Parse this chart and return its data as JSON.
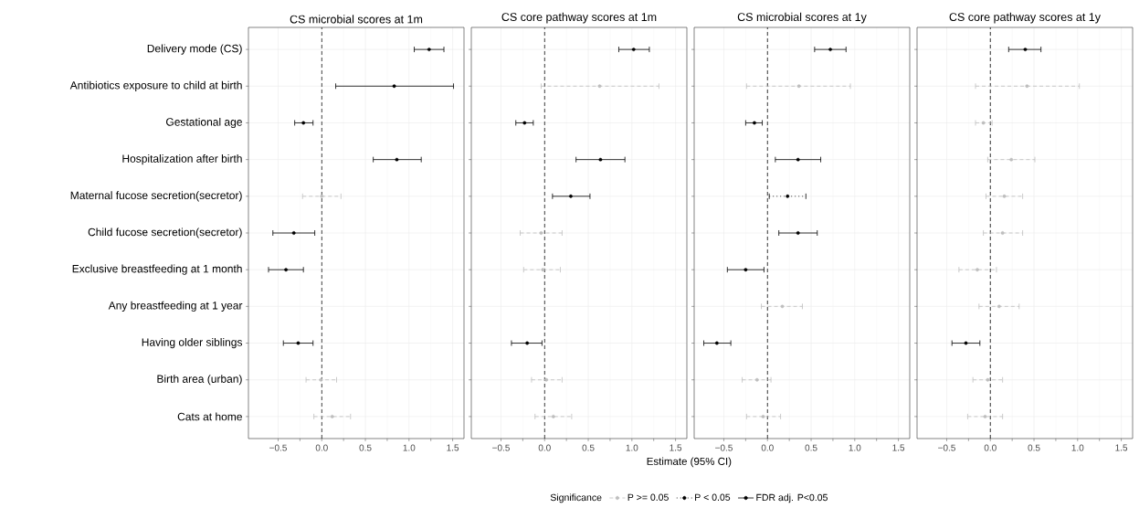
{
  "chart_data": [
    {
      "type": "scatter",
      "title": "CS microbial scores at 1m",
      "orientation": "horizontal",
      "grid": true,
      "marker": "circle",
      "categories": [
        "Delivery mode (CS)",
        "Antibiotics exposure to child at birth",
        "Gestational age",
        "Hospitalization after birth",
        "Maternal fucose secretion(secretor)",
        "Child fucose secretion(secretor)",
        "Exclusive breastfeeding at 1 month",
        "Any breastfeeding at 1 year",
        "Having older siblings",
        "Birth area (urban)",
        "Cats at home"
      ],
      "xlim": [
        -0.84,
        1.63
      ],
      "xticks": [
        {
          "value": -0.5,
          "label": "−0.5"
        },
        {
          "value": 0,
          "label": "0.0"
        },
        {
          "value": 0.5,
          "label": "0.5"
        },
        {
          "value": 1,
          "label": "1.0"
        },
        {
          "value": 1.5,
          "label": "1.5"
        }
      ],
      "ref_lines": [
        {
          "axis": "x",
          "value": 0,
          "line_style": "dashed",
          "color": "#000000"
        }
      ],
      "series": [
        {
          "color": "#bebebe",
          "line_style": "dashed",
          "values": [
            null,
            null,
            null,
            null,
            0.0,
            null,
            null,
            null,
            null,
            -0.01,
            0.12
          ],
          "errors": [
            null,
            null,
            null,
            null,
            [
              -0.22,
              0.22
            ],
            null,
            null,
            null,
            null,
            [
              -0.18,
              0.17
            ],
            [
              -0.09,
              0.33
            ]
          ]
        },
        {
          "color": "#000000",
          "line_style": "dotted",
          "values": [
            null,
            null,
            null,
            null,
            null,
            null,
            null,
            null,
            null,
            null,
            null
          ],
          "errors": [
            null,
            null,
            null,
            null,
            null,
            null,
            null,
            null,
            null,
            null,
            null
          ]
        },
        {
          "color": "#000000",
          "line_style": "solid",
          "values": [
            1.23,
            0.83,
            -0.21,
            0.86,
            null,
            -0.32,
            -0.41,
            null,
            -0.27,
            null,
            null
          ],
          "errors": [
            [
              1.06,
              1.4
            ],
            [
              0.16,
              1.51
            ],
            [
              -0.31,
              -0.1
            ],
            [
              0.59,
              1.14
            ],
            null,
            [
              -0.56,
              -0.08
            ],
            [
              -0.61,
              -0.21
            ],
            null,
            [
              -0.44,
              -0.1
            ],
            null,
            null
          ]
        }
      ]
    },
    {
      "type": "scatter",
      "title": "CS core pathway scores at 1m",
      "orientation": "horizontal",
      "grid": true,
      "marker": "circle",
      "tick_labels": "x",
      "xlabel": "Estimate (95% CI)",
      "legend": "bottom",
      "legend_title": "Significance",
      "categories": [
        null,
        null,
        null,
        null,
        null,
        null,
        null,
        null,
        null,
        null,
        null
      ],
      "xlim": [
        -0.84,
        1.63
      ],
      "xticks": [
        {
          "value": -0.5,
          "label": "−0.5"
        },
        {
          "value": 0,
          "label": "0.0"
        },
        {
          "value": 0.5,
          "label": "0.5"
        },
        {
          "value": 1,
          "label": "1.0"
        },
        {
          "value": 1.5,
          "label": "1.5"
        }
      ],
      "ref_lines": [
        {
          "axis": "x",
          "value": 0,
          "line_style": "dashed",
          "color": "#000000"
        }
      ],
      "series": [
        {
          "name": "P >= 0.05",
          "color": "#bebebe",
          "line_style": "dashed",
          "values": [
            null,
            0.63,
            null,
            null,
            null,
            -0.04,
            -0.02,
            null,
            null,
            0.02,
            0.1
          ],
          "errors": [
            null,
            [
              -0.04,
              1.31
            ],
            null,
            null,
            null,
            [
              -0.28,
              0.2
            ],
            [
              -0.24,
              0.18
            ],
            null,
            null,
            [
              -0.15,
              0.2
            ],
            [
              -0.11,
              0.31
            ]
          ]
        },
        {
          "name": "P < 0.05",
          "color": "#000000",
          "line_style": "dotted",
          "values": [
            null,
            null,
            null,
            null,
            null,
            null,
            null,
            null,
            null,
            null,
            null
          ],
          "errors": [
            null,
            null,
            null,
            null,
            null,
            null,
            null,
            null,
            null,
            null,
            null
          ]
        },
        {
          "name": "FDR adj. P<0.05",
          "color": "#000000",
          "line_style": "solid",
          "values": [
            1.02,
            null,
            -0.23,
            0.64,
            0.3,
            null,
            null,
            null,
            -0.2,
            null,
            null
          ],
          "errors": [
            [
              0.85,
              1.2
            ],
            null,
            [
              -0.33,
              -0.13
            ],
            [
              0.36,
              0.92
            ],
            [
              0.09,
              0.52
            ],
            null,
            null,
            null,
            [
              -0.38,
              -0.03
            ],
            null,
            null
          ]
        }
      ]
    },
    {
      "type": "scatter",
      "title": "CS microbial scores at 1y",
      "orientation": "horizontal",
      "grid": true,
      "marker": "circle",
      "tick_labels": "x",
      "categories": [
        null,
        null,
        null,
        null,
        null,
        null,
        null,
        null,
        null,
        null,
        null
      ],
      "xlim": [
        -0.84,
        1.63
      ],
      "xticks": [
        {
          "value": -0.5,
          "label": "−0.5"
        },
        {
          "value": 0,
          "label": "0.0"
        },
        {
          "value": 0.5,
          "label": "0.5"
        },
        {
          "value": 1,
          "label": "1.0"
        },
        {
          "value": 1.5,
          "label": "1.5"
        }
      ],
      "ref_lines": [
        {
          "axis": "x",
          "value": 0,
          "line_style": "dashed",
          "color": "#000000"
        }
      ],
      "series": [
        {
          "color": "#bebebe",
          "line_style": "dashed",
          "values": [
            null,
            0.36,
            null,
            null,
            null,
            null,
            null,
            0.17,
            null,
            -0.12,
            -0.05
          ],
          "errors": [
            null,
            [
              -0.24,
              0.95
            ],
            null,
            null,
            null,
            null,
            null,
            [
              -0.07,
              0.4
            ],
            null,
            [
              -0.29,
              0.04
            ],
            [
              -0.24,
              0.15
            ]
          ]
        },
        {
          "color": "#000000",
          "line_style": "dotted",
          "values": [
            null,
            null,
            null,
            null,
            0.23,
            null,
            null,
            null,
            null,
            null,
            null
          ],
          "errors": [
            null,
            null,
            null,
            null,
            [
              0.02,
              0.44
            ],
            null,
            null,
            null,
            null,
            null,
            null
          ]
        },
        {
          "color": "#000000",
          "line_style": "solid",
          "values": [
            0.72,
            null,
            -0.15,
            0.35,
            null,
            0.35,
            -0.25,
            null,
            -0.58,
            null,
            null
          ],
          "errors": [
            [
              0.54,
              0.9
            ],
            null,
            [
              -0.25,
              -0.06
            ],
            [
              0.09,
              0.61
            ],
            null,
            [
              0.13,
              0.57
            ],
            [
              -0.46,
              -0.04
            ],
            null,
            [
              -0.73,
              -0.42
            ],
            null,
            null
          ]
        }
      ]
    },
    {
      "type": "scatter",
      "title": "CS core pathway scores at 1y",
      "orientation": "horizontal",
      "grid": true,
      "marker": "circle",
      "tick_labels": "x",
      "categories": [
        null,
        null,
        null,
        null,
        null,
        null,
        null,
        null,
        null,
        null,
        null
      ],
      "xlim": [
        -0.84,
        1.63
      ],
      "xticks": [
        {
          "value": -0.5,
          "label": "−0.5"
        },
        {
          "value": 0,
          "label": "0.0"
        },
        {
          "value": 0.5,
          "label": "0.5"
        },
        {
          "value": 1,
          "label": "1.0"
        },
        {
          "value": 1.5,
          "label": "1.5"
        }
      ],
      "ref_lines": [
        {
          "axis": "x",
          "value": 0,
          "line_style": "dashed",
          "color": "#000000"
        }
      ],
      "series": [
        {
          "color": "#bebebe",
          "line_style": "dashed",
          "values": [
            null,
            0.42,
            -0.08,
            0.24,
            0.16,
            0.14,
            -0.15,
            0.1,
            null,
            -0.03,
            -0.06
          ],
          "errors": [
            null,
            [
              -0.17,
              1.02
            ],
            [
              -0.17,
              0.02
            ],
            [
              -0.03,
              0.51
            ],
            [
              -0.05,
              0.37
            ],
            [
              -0.08,
              0.37
            ],
            [
              -0.36,
              0.07
            ],
            [
              -0.13,
              0.33
            ],
            null,
            [
              -0.2,
              0.14
            ],
            [
              -0.26,
              0.14
            ]
          ]
        },
        {
          "color": "#000000",
          "line_style": "dotted",
          "values": [
            null,
            null,
            null,
            null,
            null,
            null,
            null,
            null,
            null,
            null,
            null
          ],
          "errors": [
            null,
            null,
            null,
            null,
            null,
            null,
            null,
            null,
            null,
            null,
            null
          ]
        },
        {
          "color": "#000000",
          "line_style": "solid",
          "values": [
            0.4,
            null,
            null,
            null,
            null,
            null,
            null,
            null,
            -0.28,
            null,
            null
          ],
          "errors": [
            [
              0.21,
              0.58
            ],
            null,
            null,
            null,
            null,
            null,
            null,
            null,
            [
              -0.44,
              -0.12
            ],
            null,
            null
          ]
        }
      ]
    }
  ]
}
